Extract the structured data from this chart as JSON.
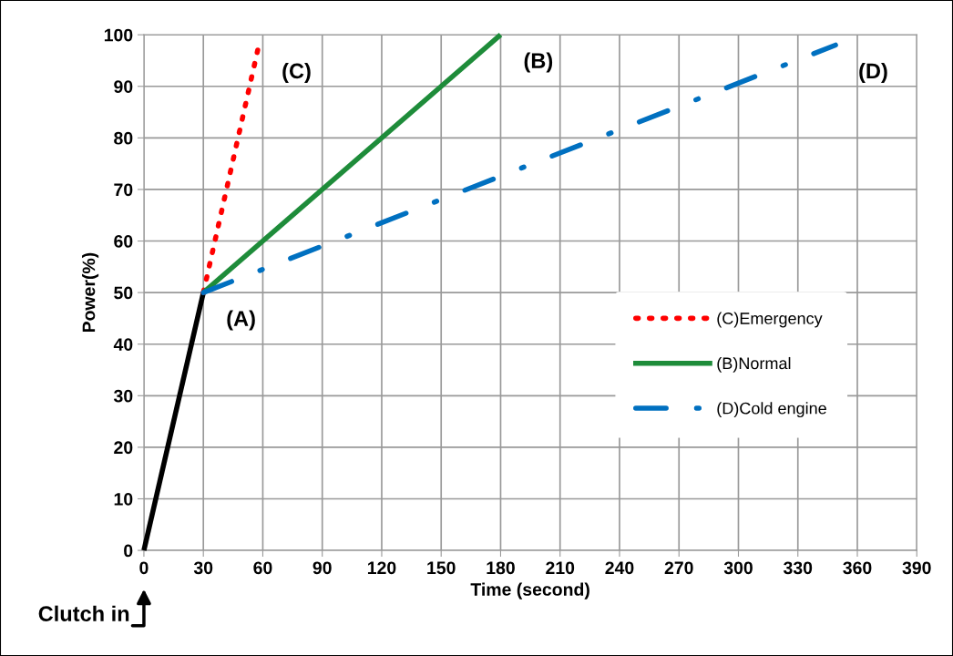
{
  "chart_data": {
    "type": "line",
    "xlabel": "Time (second)",
    "ylabel": "Power(%)",
    "xlim": [
      0,
      390
    ],
    "xticks": [
      0,
      30,
      60,
      90,
      120,
      150,
      180,
      210,
      240,
      270,
      300,
      330,
      360,
      390
    ],
    "ylim": [
      0,
      100
    ],
    "yticks": [
      0,
      10,
      20,
      30,
      40,
      50,
      60,
      70,
      80,
      90,
      100
    ],
    "grid": true,
    "legend": "right",
    "series": [
      {
        "color": "#000000",
        "x": [
          0,
          30
        ],
        "values": [
          0,
          50
        ],
        "line_style": "solid"
      },
      {
        "name": "(C)Emergency",
        "color": "#ff0000",
        "x": [
          30,
          58
        ],
        "values": [
          50,
          98
        ],
        "line_style": "dotted"
      },
      {
        "name": "(B)Normal",
        "color": "#1e8c3a",
        "x": [
          30,
          180
        ],
        "values": [
          50,
          100
        ],
        "line_style": "solid"
      },
      {
        "name": "(D)Cold engine",
        "color": "#0070c0",
        "x": [
          30,
          349
        ],
        "values": [
          50,
          98
        ],
        "line_style": "dashdot"
      }
    ],
    "annotations": [
      {
        "text": "(A)",
        "x": 30,
        "y": 50
      },
      {
        "text": "(C)",
        "x": 58,
        "y": 98
      },
      {
        "text": "(B)",
        "x": 180,
        "y": 100
      },
      {
        "text": "(D)",
        "x": 349,
        "y": 98
      },
      "Clutch in"
    ]
  }
}
